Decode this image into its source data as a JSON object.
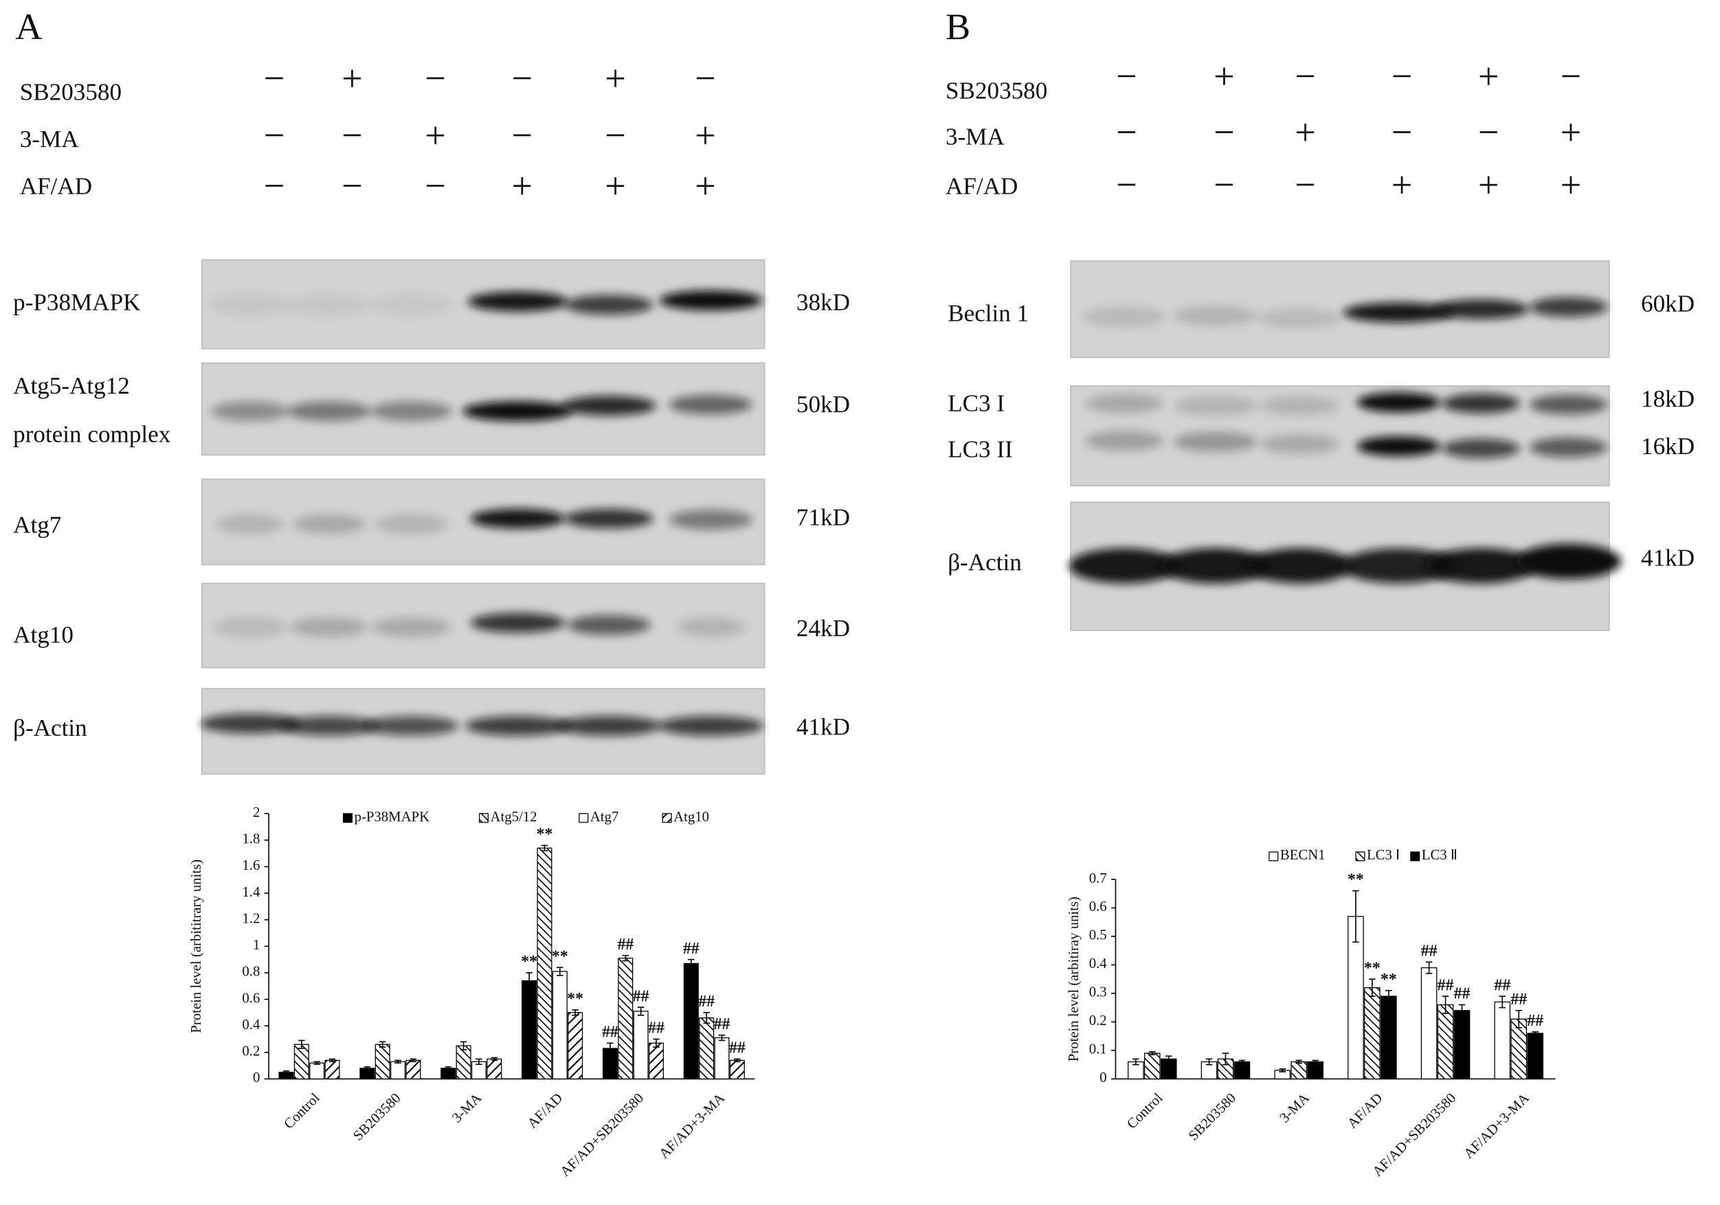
{
  "panels": [
    {
      "letter": "A",
      "treatments": [
        {
          "label": "SB203580",
          "signs": [
            "−",
            "+",
            "−",
            "−",
            "+",
            "−"
          ]
        },
        {
          "label": "3-MA",
          "signs": [
            "−",
            "−",
            "+",
            "−",
            "−",
            "+"
          ]
        },
        {
          "label": "AF/AD",
          "signs": [
            "−",
            "−",
            "−",
            "+",
            "+",
            "+"
          ]
        }
      ],
      "blots": [
        {
          "labels": [
            "p-P38MAPK"
          ],
          "kd": [
            "38kD"
          ]
        },
        {
          "labels": [
            "Atg5-Atg12",
            "protein complex"
          ],
          "kd": [
            "50kD"
          ]
        },
        {
          "labels": [
            "Atg7"
          ],
          "kd": [
            "71kD"
          ]
        },
        {
          "labels": [
            "Atg10"
          ],
          "kd": [
            "24kD"
          ]
        },
        {
          "labels": [
            "β-Actin"
          ],
          "kd": [
            "41kD"
          ]
        }
      ]
    },
    {
      "letter": "B",
      "treatments": [
        {
          "label": "SB203580",
          "signs": [
            "−",
            "+",
            "−",
            "−",
            "+",
            "−"
          ]
        },
        {
          "label": "3-MA",
          "signs": [
            "−",
            "−",
            "+",
            "−",
            "−",
            "+"
          ]
        },
        {
          "label": "AF/AD",
          "signs": [
            "−",
            "−",
            "−",
            "+",
            "+",
            "+"
          ]
        }
      ],
      "blots": [
        {
          "labels": [
            "Beclin 1"
          ],
          "kd": [
            "60kD"
          ]
        },
        {
          "labels": [
            "LC3 I",
            "LC3 II"
          ],
          "kd": [
            "18kD",
            "16kD"
          ]
        },
        {
          "labels": [
            "β-Actin"
          ],
          "kd": [
            "41kD"
          ]
        }
      ]
    }
  ],
  "chart_data": [
    {
      "type": "bar",
      "y_label": "Protein level (arbititrary units)",
      "categories": [
        "Control",
        "SB203580",
        "3-MA",
        "AF/AD",
        "AF/AD+SB203580",
        "AF/AD+3-MA"
      ],
      "series": [
        {
          "name": "p-P38MAPK",
          "color": "#000000",
          "hatch": "none",
          "values": [
            0.05,
            0.08,
            0.08,
            0.74,
            0.23,
            0.87
          ],
          "errors": [
            0.01,
            0.01,
            0.01,
            0.06,
            0.04,
            0.03
          ],
          "annotations": [
            null,
            null,
            null,
            "**",
            "##",
            "##"
          ]
        },
        {
          "name": "Atg5/12",
          "color": "#ffffff",
          "hatch": "back",
          "values": [
            0.26,
            0.26,
            0.25,
            1.74,
            0.91,
            0.46
          ],
          "errors": [
            0.03,
            0.02,
            0.03,
            0.02,
            0.02,
            0.04
          ],
          "annotations": [
            null,
            null,
            null,
            "**",
            "##",
            "##"
          ]
        },
        {
          "name": "Atg7",
          "color": "#ffffff",
          "hatch": "none",
          "values": [
            0.12,
            0.13,
            0.13,
            0.81,
            0.51,
            0.31
          ],
          "errors": [
            0.01,
            0.01,
            0.02,
            0.03,
            0.03,
            0.02
          ],
          "annotations": [
            null,
            null,
            null,
            "**",
            "##",
            "##"
          ]
        },
        {
          "name": "Atg10",
          "color": "#ffffff",
          "hatch": "forward",
          "values": [
            0.14,
            0.14,
            0.15,
            0.5,
            0.27,
            0.14
          ],
          "errors": [
            0.01,
            0.01,
            0.01,
            0.02,
            0.03,
            0.01
          ],
          "annotations": [
            null,
            null,
            null,
            "**",
            "##",
            "##"
          ]
        }
      ],
      "ylim": [
        0,
        2
      ],
      "yticks": [
        0,
        0.2,
        0.4,
        0.6,
        0.8,
        1,
        1.2,
        1.4,
        1.6,
        1.8,
        2
      ]
    },
    {
      "type": "bar",
      "y_label": "Protein level (arbitiray units)",
      "categories": [
        "Control",
        "SB203580",
        "3-MA",
        "AF/AD",
        "AF/AD+SB203580",
        "AF/AD+3-MA"
      ],
      "series": [
        {
          "name": "BECN1",
          "color": "#ffffff",
          "hatch": "none",
          "values": [
            0.06,
            0.06,
            0.03,
            0.57,
            0.39,
            0.27
          ],
          "errors": [
            0.01,
            0.01,
            0.005,
            0.09,
            0.02,
            0.02
          ],
          "annotations": [
            null,
            null,
            null,
            "**",
            "##",
            "##"
          ]
        },
        {
          "name": "LC3 Ⅰ",
          "color": "#ffffff",
          "hatch": "back",
          "values": [
            0.09,
            0.07,
            0.06,
            0.32,
            0.26,
            0.21
          ],
          "errors": [
            0.005,
            0.02,
            0.005,
            0.03,
            0.03,
            0.03
          ],
          "annotations": [
            null,
            null,
            null,
            "**",
            "##",
            "##"
          ]
        },
        {
          "name": "LC3 Ⅱ",
          "color": "#000000",
          "hatch": "none",
          "values": [
            0.07,
            0.06,
            0.06,
            0.29,
            0.24,
            0.16
          ],
          "errors": [
            0.01,
            0.005,
            0.005,
            0.02,
            0.02,
            0.005
          ],
          "annotations": [
            null,
            null,
            null,
            "**",
            "##",
            "##"
          ]
        }
      ],
      "ylim": [
        0,
        0.7
      ],
      "yticks": [
        0,
        0.1,
        0.2,
        0.3,
        0.4,
        0.5,
        0.6,
        0.7
      ]
    }
  ]
}
